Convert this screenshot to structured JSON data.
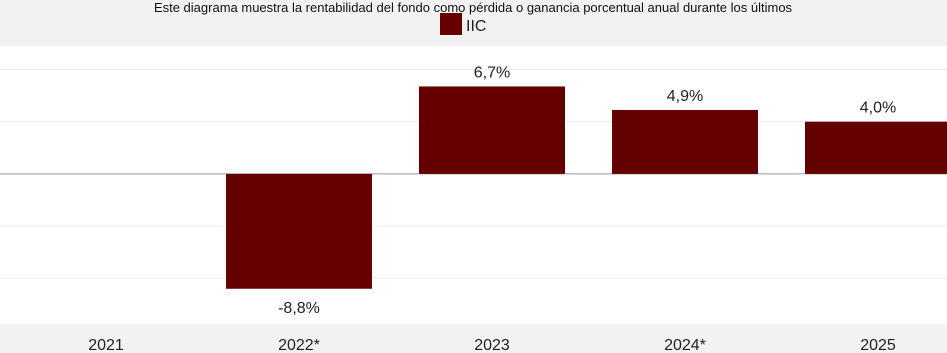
{
  "description": "Este diagrama muestra la rentabilidad del fondo como pérdida o ganancia porcentual anual durante los últimos",
  "chart_data": {
    "type": "bar",
    "title": "",
    "xlabel": "",
    "ylabel": "",
    "categories": [
      "2021",
      "2022*",
      "2023",
      "2024*",
      "2025"
    ],
    "series": [
      {
        "name": "IIC",
        "color": "#650000",
        "values": [
          null,
          -8.8,
          6.7,
          4.9,
          4.0
        ],
        "labels": [
          "",
          "-8,8%",
          "6,7%",
          "4,9%",
          "4,0%"
        ]
      }
    ],
    "ylim": [
      -11.5,
      9.8
    ],
    "grid": true,
    "legend": "top-center"
  }
}
